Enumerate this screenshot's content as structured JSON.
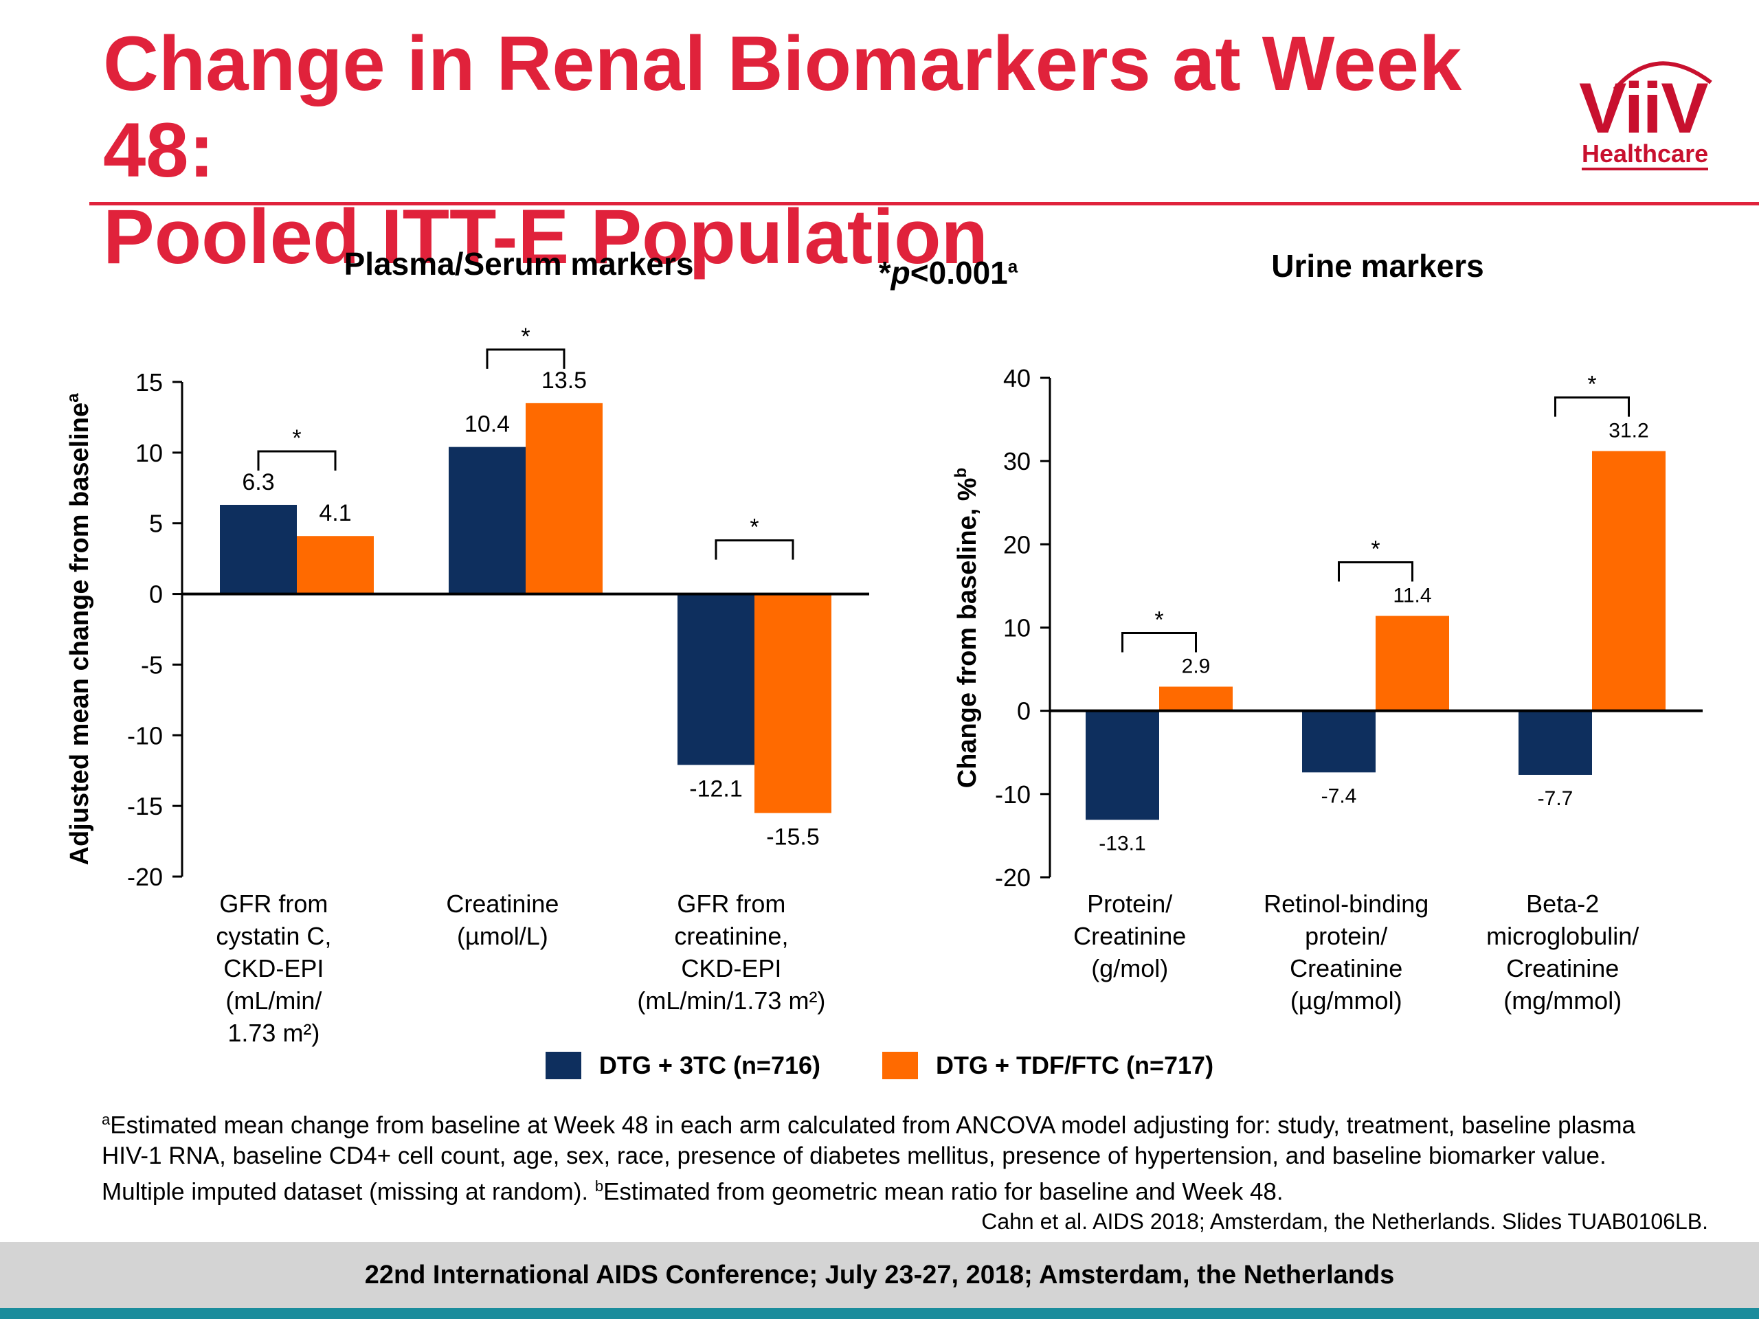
{
  "slide": {
    "title_line1": "Change in Renal Biomarkers at Week 48:",
    "title_line2": "Pooled ITT-E Population",
    "logo_text": "ViiV",
    "logo_subtext": "Healthcare",
    "pvalue_prefix": "*",
    "pvalue_p": "p",
    "pvalue_rest": "<0.001",
    "pvalue_sup": "a",
    "footnote_sup_a": "a",
    "footnote_text_1": "Estimated mean change from baseline at Week 48 in each arm calculated from ANCOVA model adjusting for: study, treatment, baseline plasma HIV-1 RNA, baseline CD4+ cell count, age, sex, race, presence of diabetes mellitus, presence of hypertension, and baseline biomarker value. Multiple imputed dataset (missing at random). ",
    "footnote_sup_b": "b",
    "footnote_text_2": "Estimated from geometric mean ratio for baseline and Week 48.",
    "citation": "Cahn et al. AIDS 2018; Amsterdam, the Netherlands. Slides TUAB0106LB.",
    "footer": "22nd International AIDS Conference; July 23-27, 2018; Amsterdam, the Netherlands",
    "colors": {
      "title": "#e0223b",
      "dtg_3tc": "#0e2f5e",
      "dtg_tdf": "#ff6a00",
      "footer_strip": "#1a8c9c"
    }
  },
  "legend": [
    {
      "label": "DTG + 3TC (n=716)",
      "color": "#0e2f5e"
    },
    {
      "label": "DTG + TDF/FTC (n=717)",
      "color": "#ff6a00"
    }
  ],
  "chart_data": [
    {
      "type": "bar",
      "title": "Plasma/Serum markers",
      "ylabel": "Adjusted mean change from baseline",
      "ylabel_sup": "a",
      "ylim": [
        -20,
        15
      ],
      "yticks": [
        15,
        10,
        5,
        0,
        -5,
        -10,
        -15,
        -20
      ],
      "categories": [
        [
          "GFR from",
          "cystatin C,",
          "CKD-EPI",
          "(mL/min/",
          "1.73 m²)"
        ],
        [
          "Creatinine",
          "(µmol/L)"
        ],
        [
          "GFR from",
          "creatinine,",
          "CKD-EPI",
          "(mL/min/1.73 m²)"
        ]
      ],
      "series": [
        {
          "name": "DTG + 3TC (n=716)",
          "values": [
            6.3,
            10.4,
            -12.1
          ],
          "labels": [
            "6.3",
            "10.4",
            "-12.1"
          ]
        },
        {
          "name": "DTG + TDF/FTC (n=717)",
          "values": [
            4.1,
            13.5,
            -15.5
          ],
          "labels": [
            "4.1",
            "13.5",
            "-15.5"
          ]
        }
      ],
      "significance": [
        "*",
        "*",
        "*"
      ]
    },
    {
      "type": "bar",
      "title": "Urine markers",
      "ylabel": "Change from baseline, %",
      "ylabel_sup": "b",
      "ylim": [
        -20,
        40
      ],
      "yticks": [
        40,
        30,
        20,
        10,
        0,
        -10,
        -20
      ],
      "categories": [
        [
          "Protein/",
          "Creatinine",
          "(g/mol)"
        ],
        [
          "Retinol-binding",
          "protein/",
          "Creatinine",
          "(µg/mmol)"
        ],
        [
          "Beta-2",
          "microglobulin/",
          "Creatinine",
          "(mg/mmol)"
        ]
      ],
      "series": [
        {
          "name": "DTG + 3TC (n=716)",
          "values": [
            -13.1,
            -7.4,
            -7.7
          ],
          "labels": [
            "-13.1",
            "-7.4",
            "-7.7"
          ]
        },
        {
          "name": "DTG + TDF/FTC (n=717)",
          "values": [
            2.9,
            11.4,
            31.2
          ],
          "labels": [
            "2.9",
            "11.4",
            "31.2"
          ]
        }
      ],
      "significance": [
        "*",
        "*",
        "*"
      ]
    }
  ]
}
